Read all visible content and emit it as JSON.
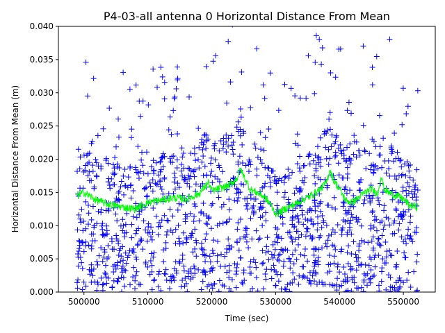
{
  "chart_data": {
    "type": "scatter",
    "title": "P4-03-all antenna 0 Horizontal Distance From Mean",
    "xlabel": "Time (sec)",
    "ylabel": "Horizontal Distance From Mean (m)",
    "xlim": [
      496000,
      555000
    ],
    "ylim": [
      0,
      0.04
    ],
    "x_ticks": [
      500000,
      510000,
      520000,
      530000,
      540000,
      550000
    ],
    "x_tick_labels": [
      "500000",
      "510000",
      "520000",
      "530000",
      "540000",
      "550000"
    ],
    "y_ticks": [
      0,
      0.005,
      0.01,
      0.015,
      0.02,
      0.025,
      0.03,
      0.035,
      0.04
    ],
    "y_tick_labels": [
      "0.000",
      "0.005",
      "0.010",
      "0.015",
      "0.020",
      "0.025",
      "0.030",
      "0.035",
      "0.040"
    ],
    "grid": false,
    "series": [
      {
        "marker": "plus",
        "color": "#0000ff",
        "x_range": [
          498900,
          552300
        ],
        "approx_points": 1500
      },
      {
        "marker": "line",
        "color": "#00ff00",
        "x": [
          498900,
          500000,
          502000,
          504000,
          506000,
          508000,
          510000,
          512000,
          514000,
          516000,
          518000,
          519500,
          520000,
          521000,
          522000,
          523000,
          524000,
          524500,
          525000,
          525500,
          526000,
          527000,
          528000,
          529000,
          530000,
          531000,
          532000,
          533000,
          534000,
          535000,
          536000,
          537000,
          538000,
          538500,
          539000,
          540000,
          541000,
          542000,
          543000,
          544000,
          545000,
          546000,
          546500,
          547000,
          548000,
          549000,
          550000,
          551000,
          552300
        ],
        "y": [
          0.0145,
          0.015,
          0.0138,
          0.0132,
          0.0128,
          0.0125,
          0.0135,
          0.0138,
          0.0142,
          0.014,
          0.0148,
          0.0165,
          0.0152,
          0.0155,
          0.0158,
          0.0162,
          0.0172,
          0.0185,
          0.0175,
          0.0165,
          0.0155,
          0.015,
          0.0145,
          0.0135,
          0.0118,
          0.0122,
          0.0128,
          0.0132,
          0.0138,
          0.0142,
          0.0148,
          0.0155,
          0.0165,
          0.0185,
          0.017,
          0.0155,
          0.0138,
          0.0135,
          0.0142,
          0.015,
          0.0155,
          0.0148,
          0.0175,
          0.0155,
          0.0148,
          0.0145,
          0.014,
          0.013,
          0.0128
        ]
      }
    ]
  }
}
